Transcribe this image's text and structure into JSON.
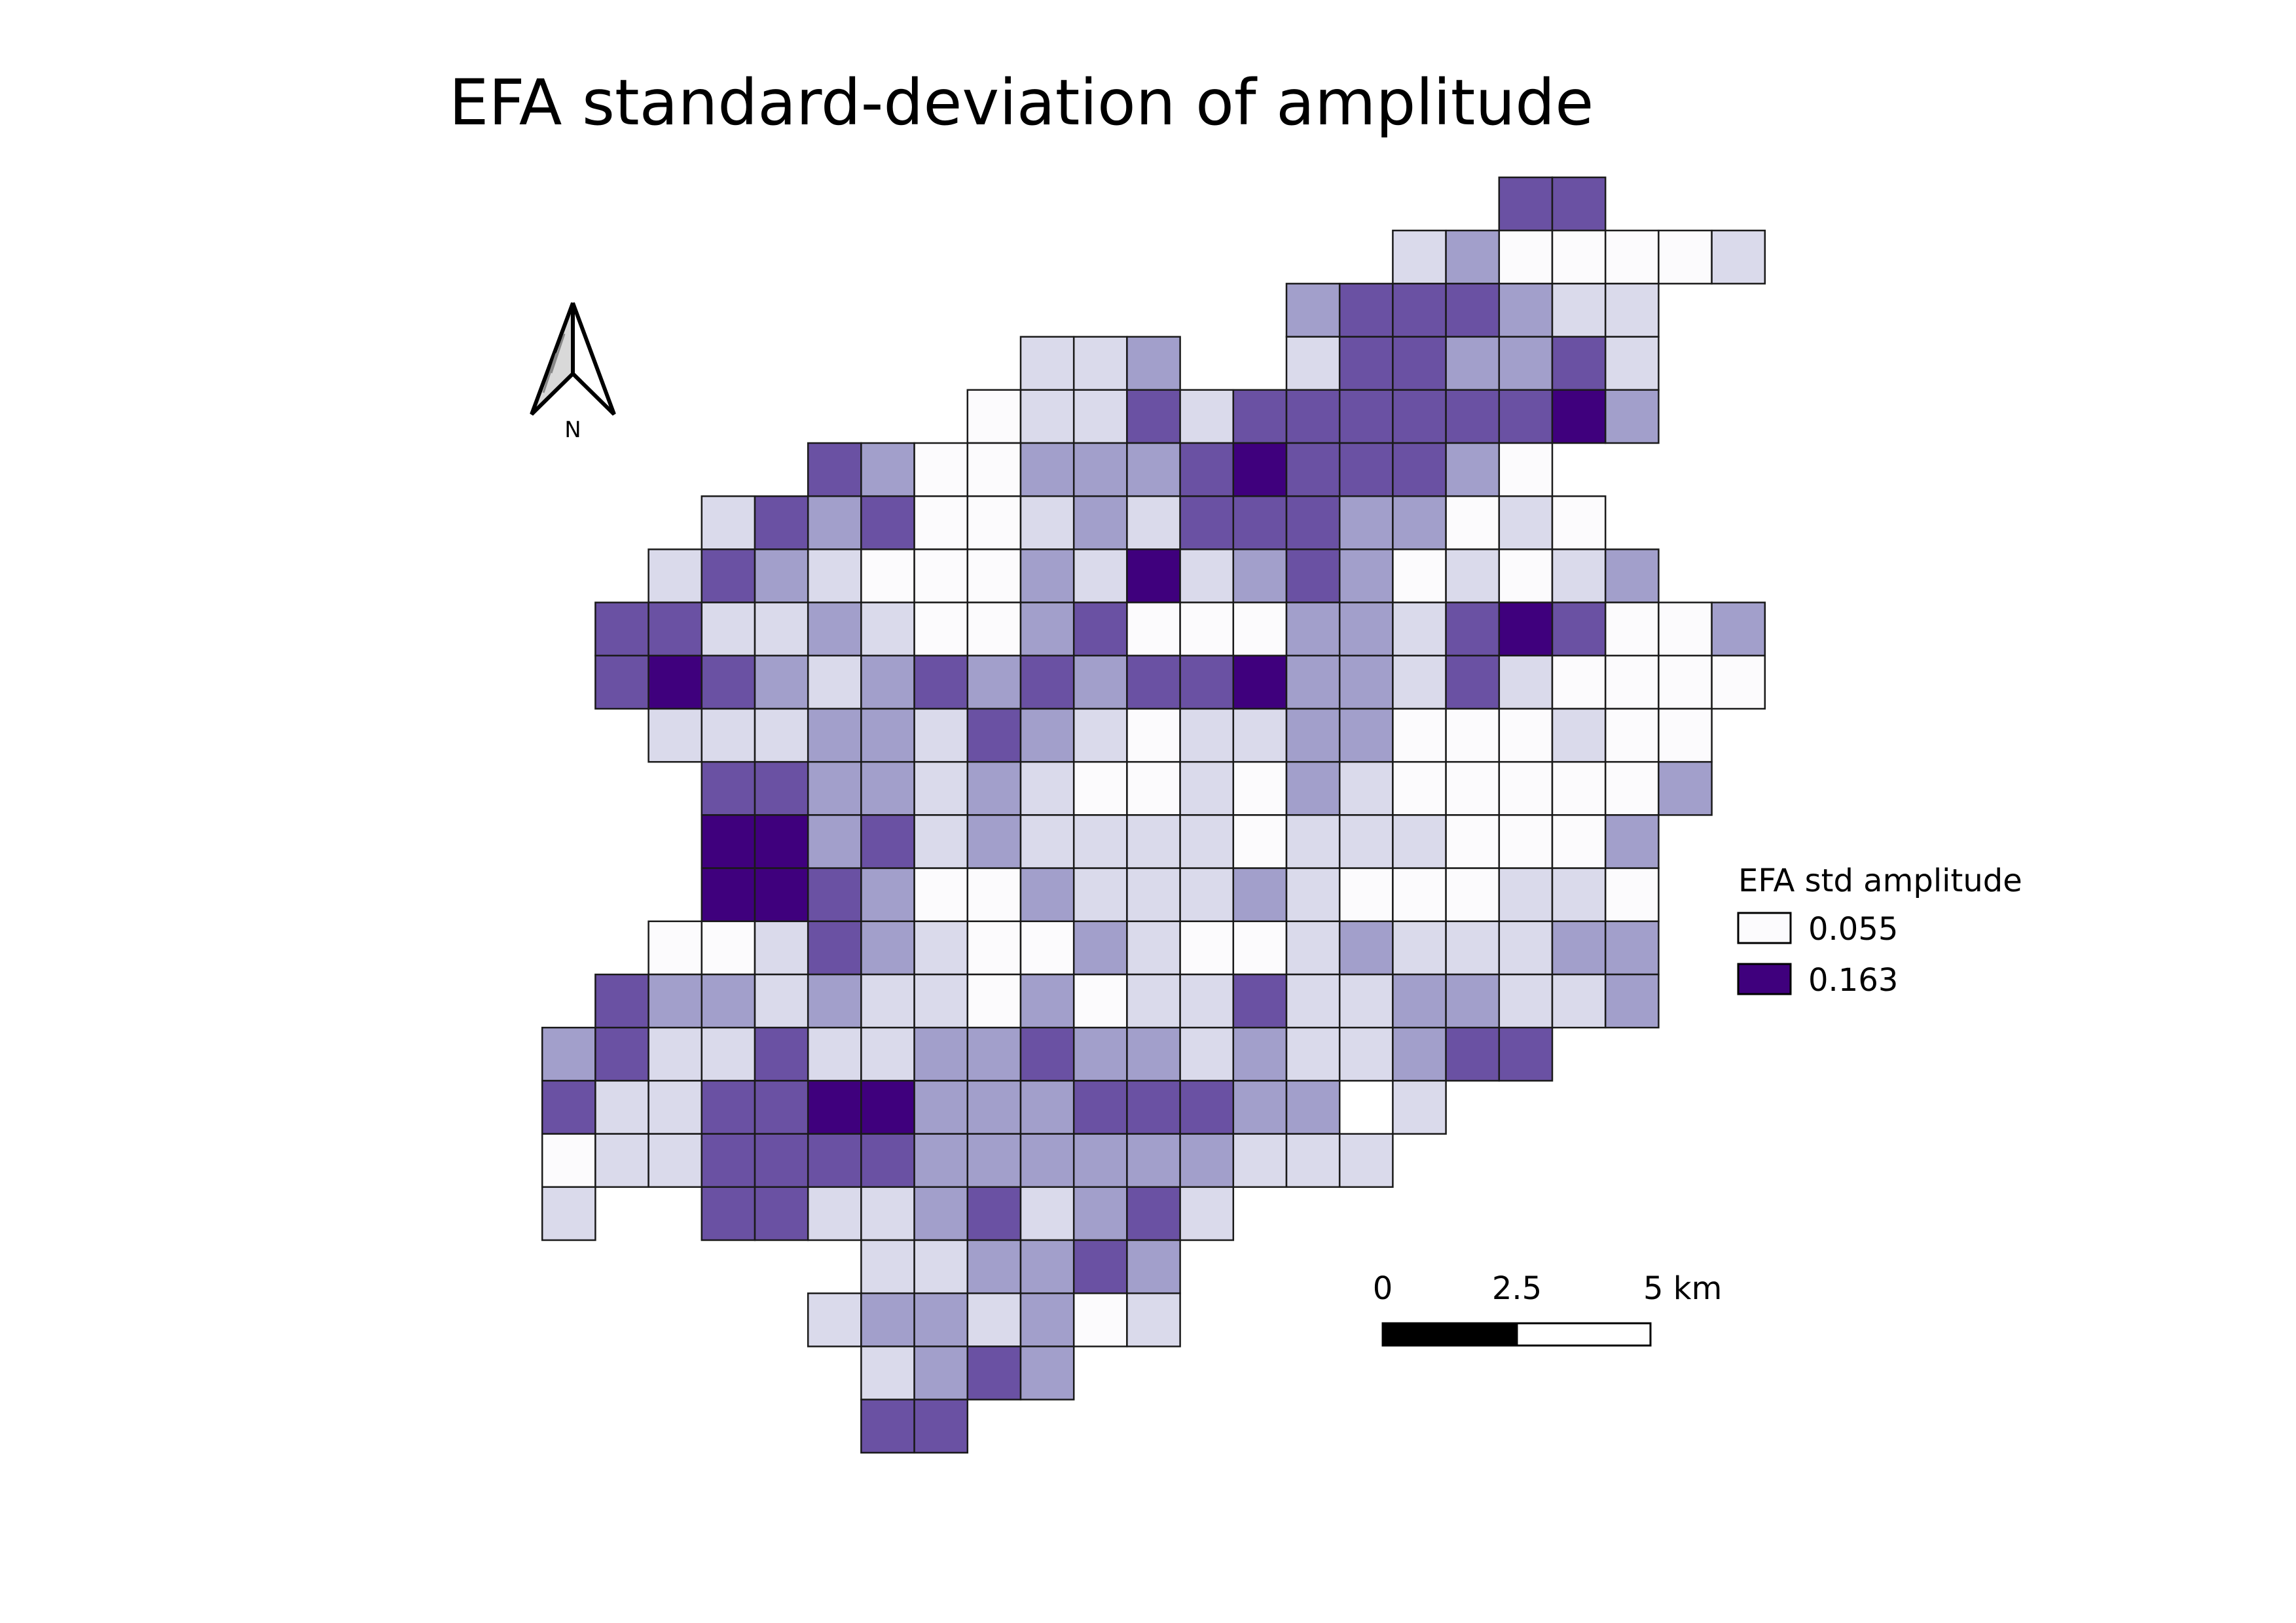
{
  "map": {
    "title": "EFA standard-deviation of amplitude",
    "north_arrow_label": "N",
    "legend": {
      "title": "EFA std amplitude",
      "items": [
        {
          "label": "0.055",
          "color": "#fcfbfd"
        },
        {
          "label": "0.163",
          "color": "#3f007d"
        }
      ]
    },
    "scale_bar": {
      "labels": [
        "0",
        "2.5",
        "5 km"
      ]
    },
    "palette": {
      "0": "#fcfbfd",
      "1": "#dadaeb",
      "2": "#a29fcb",
      "3": "#6a51a3",
      "4": "#3f007d"
    },
    "grid": {
      "comment_rows": "each string is a row from top; characters are columns; '.' = no cell, 0-4 = class (0 lightest, 4 darkest)",
      "rows": [
        "...................33...",
        ".................1200001",
        "...............2333211..",
        "..........112..1332231..",
        ".........0113133333342..",
        "......32002223433320....",
        "....13230012133322010...",
        "...1321000214123201012..",
        "..3311210023000221343002",
        "..3432123232334221310000",
        "...11122132101122000100.",
        "....3322121001021000002.",
        "....442312111101110002..",
        "....443200211121000110..",
        "...0013210021001211122..",
        "..32212110201131122112..",
        ".2311311223221211233....",
        ".311334422233322.1......",
        ".0113333222222111.......",
        ".1..3311231231..........",
        ".......112232...........",
        "......1221201...........",
        ".......1232.............",
        ".......33..............."
      ]
    }
  }
}
